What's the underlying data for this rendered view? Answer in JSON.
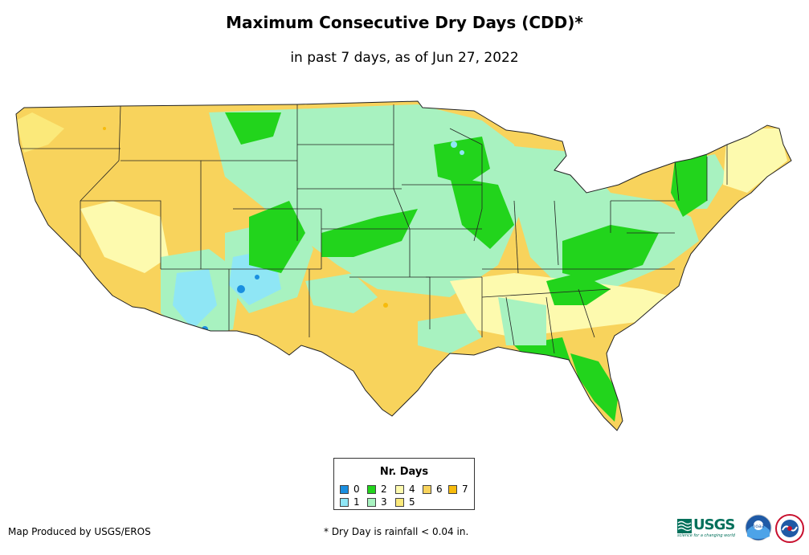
{
  "header": {
    "title": "Maximum Consecutive Dry Days (CDD)*",
    "subtitle": "in past 7 days, as of Jun 27, 2022"
  },
  "legend": {
    "title": "Nr. Days",
    "items": [
      {
        "label": "0",
        "color": "#1a8fe0"
      },
      {
        "label": "1",
        "color": "#8fe6f5"
      },
      {
        "label": "2",
        "color": "#22d41c"
      },
      {
        "label": "3",
        "color": "#a8f2c0"
      },
      {
        "label": "4",
        "color": "#fdfaae"
      },
      {
        "label": "5",
        "color": "#fbe97a"
      },
      {
        "label": "6",
        "color": "#f8d35c"
      },
      {
        "label": "7",
        "color": "#f7bb0c"
      }
    ]
  },
  "footer": {
    "credit": "Map Produced by USGS/EROS",
    "note": "* Dry Day is rainfall < 0.04 in."
  },
  "logos": {
    "usgs": "USGS",
    "usgs_tagline": "science for a changing world",
    "noaa": "noaa"
  },
  "colors": {
    "state_border": "#222222",
    "usgs_green": "#00705b",
    "noaa_blue": "#1f5aa6"
  }
}
